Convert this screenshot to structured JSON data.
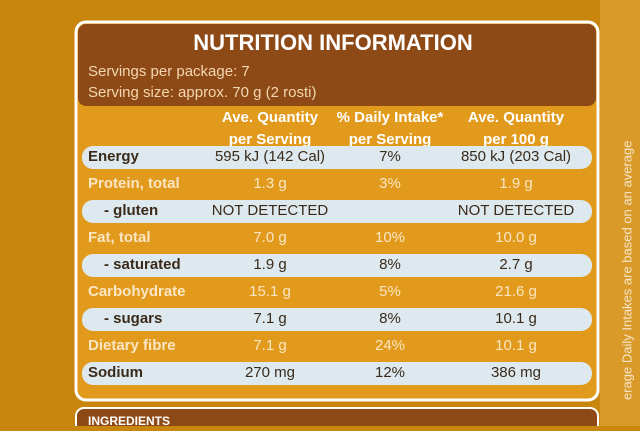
{
  "header": {
    "title": "NUTRITION INFORMATION",
    "servings": "Servings per package: 7",
    "serving_size": "Serving size: approx. 70 g (2 rosti)"
  },
  "table": {
    "columns": [
      [
        "Ave. Quantity",
        "per Serving"
      ],
      [
        "% Daily Intake*",
        "per Serving"
      ],
      [
        "Ave. Quantity",
        "per 100 g"
      ]
    ],
    "rows": [
      [
        "Energy",
        "595 kJ (142 Cal)",
        "7%",
        "850 kJ (203 Cal)"
      ],
      [
        "Protein, total",
        "1.3 g",
        "3%",
        "1.9 g"
      ],
      [
        "- gluten",
        "NOT DETECTED",
        "",
        "NOT DETECTED"
      ],
      [
        "Fat, total",
        "7.0 g",
        "10%",
        "10.0 g"
      ],
      [
        "- saturated",
        "1.9 g",
        "8%",
        "2.7 g"
      ],
      [
        "Carbohydrate",
        "15.1 g",
        "5%",
        "21.6 g"
      ],
      [
        "- sugars",
        "7.1 g",
        "8%",
        "10.1 g"
      ],
      [
        "Dietary fibre",
        "7.1 g",
        "24%",
        "10.1 g"
      ],
      [
        "Sodium",
        "270 mg",
        "12%",
        "386 mg"
      ]
    ]
  },
  "side_note": "erage Daily Intakes are based on an average",
  "footer": "INGREDIENTS"
}
